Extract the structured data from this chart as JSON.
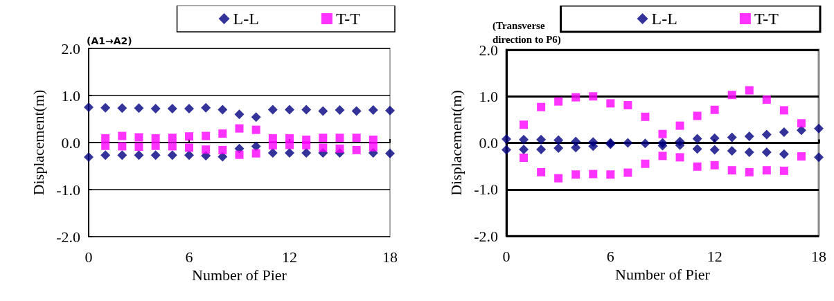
{
  "chart_data": [
    {
      "type": "scatter",
      "annotations": [
        "(A1→A2)"
      ],
      "xlabel": "Number of Pier",
      "ylabel": "Displacement(m)",
      "xlim": [
        0,
        18
      ],
      "xticks": [
        0,
        6,
        12,
        18
      ],
      "ylim": [
        -2,
        2
      ],
      "yticks": [
        {
          "value": -2,
          "label": "-2.0"
        },
        {
          "value": -1,
          "label": "-1.0"
        },
        {
          "value": 0,
          "label": "0.0"
        },
        {
          "value": 1,
          "label": "1.0"
        },
        {
          "value": 2,
          "label": "2.0"
        }
      ],
      "grid": "y",
      "legend": "top right",
      "series": [
        {
          "name": "L-L",
          "color": "#000080",
          "marker": "diamond",
          "x": [
            0,
            1,
            2,
            3,
            4,
            5,
            6,
            7,
            8,
            9,
            10,
            11,
            12,
            13,
            14,
            15,
            16,
            17,
            18,
            0,
            1,
            2,
            3,
            4,
            5,
            6,
            7,
            8,
            9,
            10,
            11,
            12,
            13,
            14,
            15,
            16,
            17,
            18
          ],
          "values": [
            0.75,
            0.74,
            0.73,
            0.73,
            0.72,
            0.72,
            0.72,
            0.74,
            0.7,
            0.6,
            0.54,
            0.7,
            0.7,
            0.7,
            0.67,
            0.69,
            0.67,
            0.69,
            0.68,
            -0.31,
            -0.27,
            -0.27,
            -0.27,
            -0.27,
            -0.27,
            -0.27,
            -0.28,
            -0.3,
            -0.13,
            -0.08,
            -0.22,
            -0.22,
            -0.22,
            -0.22,
            -0.22,
            null,
            -0.22,
            -0.23
          ]
        },
        {
          "name": "T-T",
          "color": "#ff00ff",
          "marker": "square",
          "x": [
            1,
            2,
            3,
            4,
            5,
            6,
            7,
            8,
            9,
            10,
            11,
            12,
            13,
            14,
            15,
            16,
            17,
            1,
            2,
            3,
            4,
            5,
            6,
            7,
            8,
            9,
            10,
            11,
            12,
            13,
            14,
            15,
            16,
            17
          ],
          "values": [
            0.09,
            0.14,
            0.11,
            0.09,
            0.1,
            0.13,
            0.14,
            0.19,
            0.3,
            0.27,
            0.09,
            0.09,
            0.06,
            0.1,
            0.1,
            0.1,
            0.06,
            -0.07,
            -0.08,
            -0.09,
            -0.07,
            -0.08,
            -0.11,
            -0.15,
            -0.16,
            -0.26,
            -0.23,
            -0.06,
            -0.05,
            -0.06,
            -0.11,
            -0.13,
            -0.16,
            -0.1
          ]
        }
      ]
    },
    {
      "type": "scatter",
      "annotations": [
        "(Transverse\ndirection to P6)"
      ],
      "xlabel": "Number of Pier",
      "ylabel": "Displacement(m)",
      "xlim": [
        0,
        18
      ],
      "xticks": [
        0,
        6,
        12,
        18
      ],
      "ylim": [
        -2,
        2
      ],
      "yticks": [
        {
          "value": -2,
          "label": "-2.0"
        },
        {
          "value": -1,
          "label": "-1.0"
        },
        {
          "value": 0,
          "label": "0.0"
        },
        {
          "value": 1,
          "label": "1.0"
        },
        {
          "value": 2,
          "label": "2.0"
        }
      ],
      "grid": "y",
      "legend": "top right",
      "series": [
        {
          "name": "L-L",
          "color": "#000080",
          "marker": "diamond",
          "x": [
            0,
            1,
            2,
            3,
            4,
            5,
            6,
            7,
            8,
            9,
            10,
            11,
            12,
            13,
            14,
            15,
            16,
            17,
            18,
            0,
            1,
            2,
            3,
            4,
            5,
            6,
            7,
            8,
            9,
            10,
            11,
            12,
            13,
            14,
            15,
            16,
            17,
            18
          ],
          "values": [
            0.08,
            0.07,
            0.07,
            0.06,
            0.03,
            0.02,
            0,
            0,
            null,
            0,
            0.03,
            0.09,
            0.1,
            0.12,
            0.14,
            0.18,
            0.23,
            0.27,
            0.31,
            -0.15,
            -0.14,
            -0.14,
            -0.11,
            -0.1,
            -0.07,
            -0.03,
            null,
            -0.01,
            -0.06,
            -0.05,
            -0.13,
            -0.15,
            -0.17,
            -0.2,
            -0.2,
            -0.24,
            null,
            -0.31
          ]
        },
        {
          "name": "T-T",
          "color": "#ff00ff",
          "marker": "square",
          "x": [
            1,
            2,
            3,
            4,
            5,
            6,
            7,
            8,
            9,
            10,
            11,
            12,
            13,
            14,
            15,
            16,
            17,
            1,
            2,
            3,
            4,
            5,
            6,
            7,
            8,
            9,
            10,
            11,
            12,
            13,
            14,
            15,
            16,
            17
          ],
          "values": [
            0.39,
            0.77,
            0.89,
            0.98,
            1.0,
            0.85,
            0.81,
            0.56,
            0.19,
            0.37,
            0.58,
            0.71,
            1.03,
            1.13,
            0.93,
            0.7,
            0.42,
            -0.32,
            -0.63,
            -0.76,
            -0.68,
            -0.67,
            -0.68,
            -0.64,
            -0.45,
            -0.28,
            -0.31,
            -0.51,
            -0.48,
            -0.59,
            -0.63,
            -0.59,
            -0.6,
            -0.29
          ]
        }
      ]
    }
  ]
}
